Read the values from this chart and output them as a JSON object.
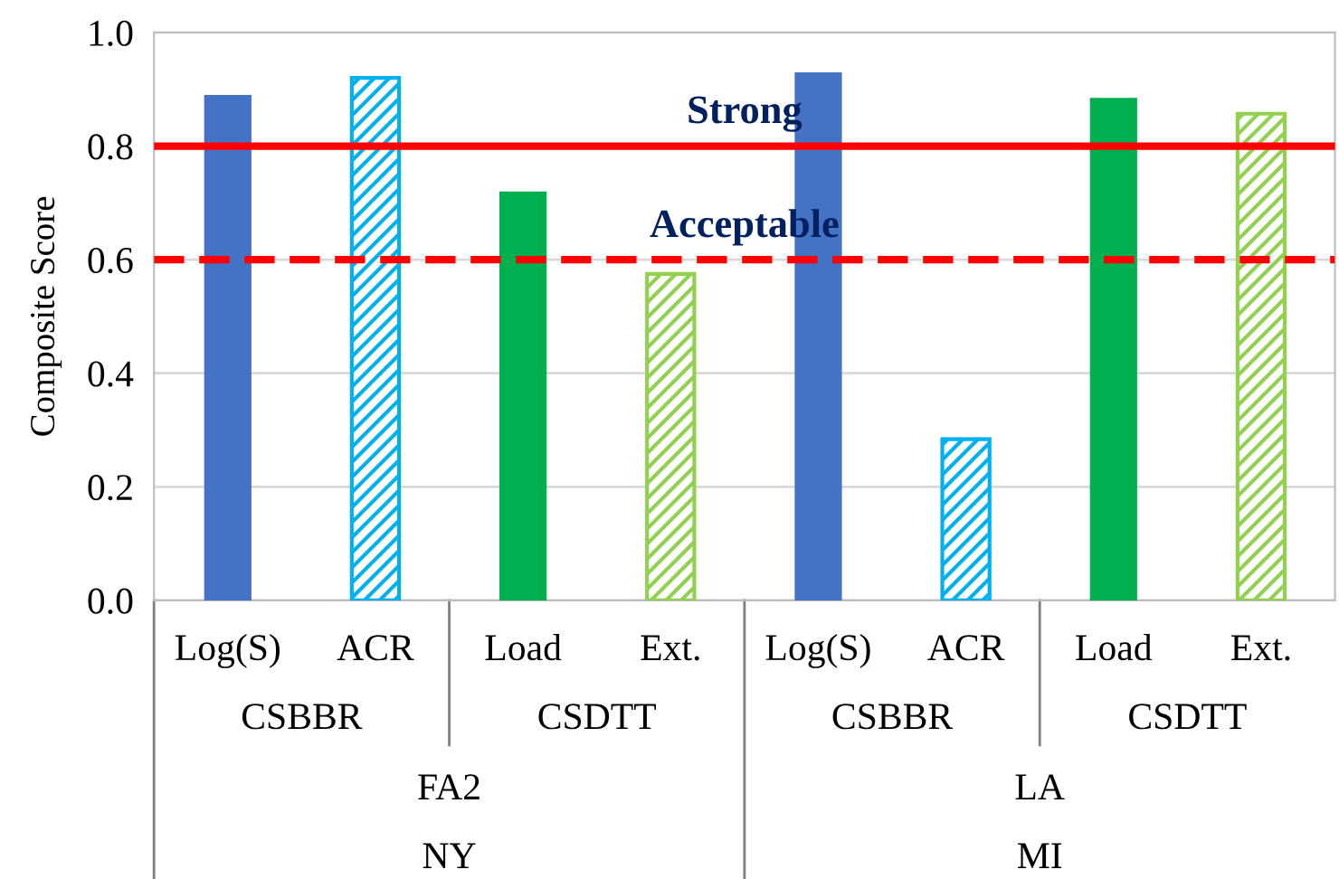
{
  "chart_data": {
    "type": "bar",
    "ylabel": "Composite Score",
    "categories": [
      "Log(S)",
      "ACR",
      "Load",
      "Ext.",
      "Log(S)",
      "ACR",
      "Load",
      "Ext."
    ],
    "values": [
      0.89,
      0.92,
      0.72,
      0.575,
      0.93,
      0.284,
      0.885,
      0.857
    ],
    "colors": [
      "#4472c4",
      "#00b0f0",
      "#00b050",
      "#92d050",
      "#4472c4",
      "#00b0f0",
      "#00b050",
      "#92d050"
    ],
    "ylim": [
      0,
      1.0
    ],
    "yticks": [
      {
        "value": 0,
        "label": "0.0"
      },
      {
        "value": 0.2,
        "label": "0.2"
      },
      {
        "value": 0.4,
        "label": "0.4"
      },
      {
        "value": 0.6,
        "label": "0.6"
      },
      {
        "value": 0.8,
        "label": "0.8"
      },
      {
        "value": 1.0,
        "label": "1.0"
      }
    ],
    "grid": "y",
    "ref_lines": [
      {
        "axis": "y",
        "value": 0.8,
        "label": "Strong",
        "color": "#ff0000",
        "line_style": "solid"
      },
      {
        "axis": "y",
        "value": 0.6,
        "label": "Acceptable",
        "color": "#ff0000",
        "line_style": "dashed"
      }
    ],
    "annotations": [
      "CSBBR",
      "CSDTT",
      "CSBBR",
      "CSDTT",
      "FA2",
      "LA",
      "NY",
      "MI"
    ]
  }
}
